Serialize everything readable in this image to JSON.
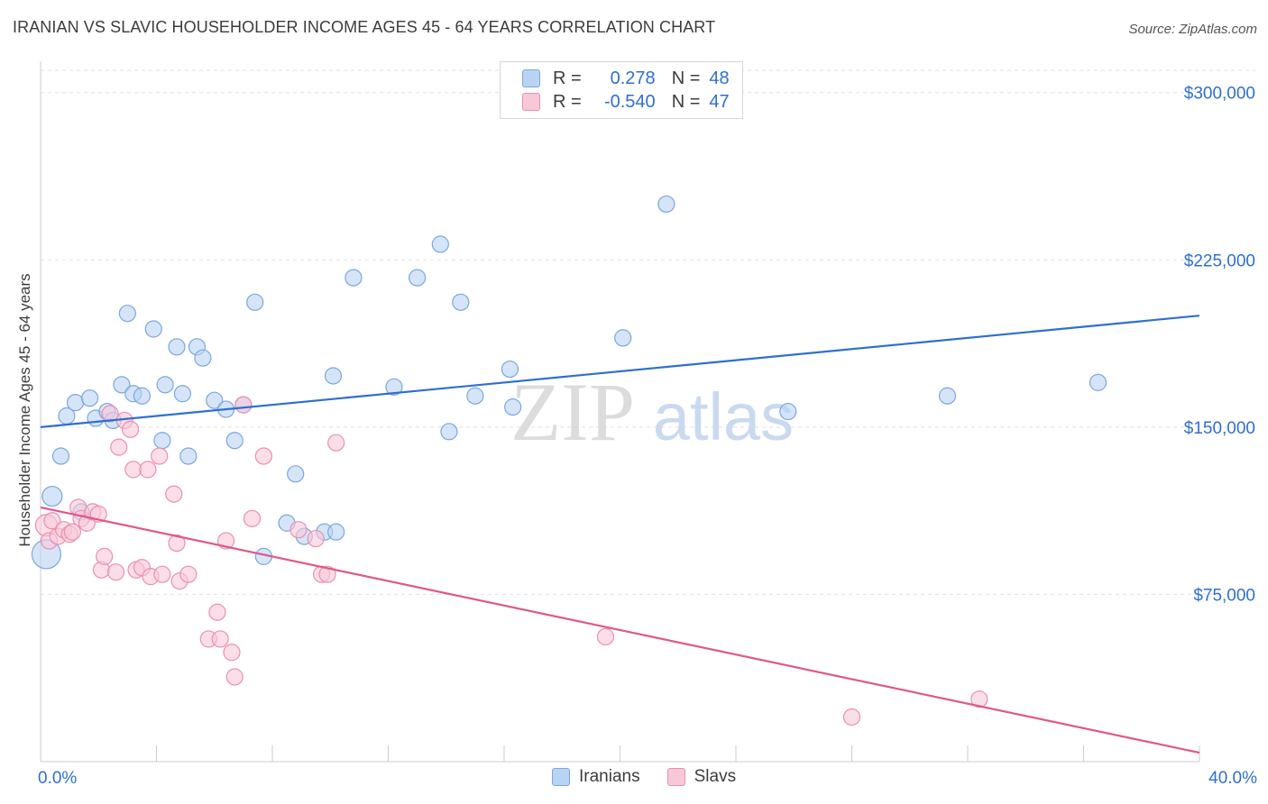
{
  "header": {
    "title": "IRANIAN VS SLAVIC HOUSEHOLDER INCOME AGES 45 - 64 YEARS CORRELATION CHART",
    "source": "Source: ZipAtlas.com"
  },
  "watermark": {
    "zip": "ZIP",
    "atlas": "atlas"
  },
  "legend": {
    "rows": [
      {
        "r_label": "R =",
        "r_value": "0.278",
        "n_label": "N =",
        "n_value": "48",
        "color": "#b9d3f2",
        "border": "#7aa6e0"
      },
      {
        "r_label": "R =",
        "r_value": "-0.540",
        "n_label": "N =",
        "n_value": "47",
        "color": "#f8c8d8",
        "border": "#eb8fb0"
      }
    ]
  },
  "bottom_legend": [
    {
      "label": "Iranians",
      "color": "#b9d3f2",
      "border": "#7aa6e0"
    },
    {
      "label": "Slavs",
      "color": "#f8c8d8",
      "border": "#eb8fb0"
    }
  ],
  "chart_data": {
    "type": "scatter",
    "title": "IRANIAN VS SLAVIC HOUSEHOLDER INCOME AGES 45 - 64 YEARS CORRELATION CHART",
    "xlabel": "",
    "ylabel": "Householder Income Ages 45 - 64 years",
    "xlim": [
      0,
      40
    ],
    "ylim": [
      0,
      310000
    ],
    "x_tick_labels": [
      "0.0%",
      "40.0%"
    ],
    "y_ticks": [
      75000,
      150000,
      225000,
      300000
    ],
    "y_tick_labels": [
      "$75,000",
      "$150,000",
      "$225,000",
      "$300,000"
    ],
    "grid": true,
    "colors": {
      "iranians": "#2f6fcf",
      "slavs": "#e0578a",
      "tick_label": "#2f6fcf"
    },
    "series": [
      {
        "name": "Iranians",
        "color": "#7aa6e0",
        "fill": "#b9d3f2",
        "trend": {
          "x": [
            0,
            40
          ],
          "y": [
            150000,
            200000
          ]
        },
        "points": [
          {
            "x": 0.2,
            "y": 93000
          },
          {
            "x": 0.4,
            "y": 119000
          },
          {
            "x": 0.7,
            "y": 137000
          },
          {
            "x": 0.9,
            "y": 155000
          },
          {
            "x": 1.2,
            "y": 161000
          },
          {
            "x": 1.4,
            "y": 112000
          },
          {
            "x": 1.7,
            "y": 163000
          },
          {
            "x": 1.9,
            "y": 154000
          },
          {
            "x": 2.3,
            "y": 157000
          },
          {
            "x": 2.5,
            "y": 153000
          },
          {
            "x": 2.8,
            "y": 169000
          },
          {
            "x": 3.0,
            "y": 201000
          },
          {
            "x": 3.2,
            "y": 165000
          },
          {
            "x": 3.5,
            "y": 164000
          },
          {
            "x": 3.9,
            "y": 194000
          },
          {
            "x": 4.2,
            "y": 144000
          },
          {
            "x": 4.3,
            "y": 169000
          },
          {
            "x": 4.7,
            "y": 186000
          },
          {
            "x": 4.9,
            "y": 165000
          },
          {
            "x": 5.1,
            "y": 137000
          },
          {
            "x": 5.4,
            "y": 186000
          },
          {
            "x": 5.6,
            "y": 181000
          },
          {
            "x": 6.0,
            "y": 162000
          },
          {
            "x": 6.4,
            "y": 158000
          },
          {
            "x": 6.7,
            "y": 144000
          },
          {
            "x": 7.0,
            "y": 160000
          },
          {
            "x": 7.4,
            "y": 206000
          },
          {
            "x": 7.7,
            "y": 92000
          },
          {
            "x": 8.5,
            "y": 107000
          },
          {
            "x": 8.8,
            "y": 129000
          },
          {
            "x": 9.1,
            "y": 101000
          },
          {
            "x": 9.8,
            "y": 103000
          },
          {
            "x": 10.1,
            "y": 173000
          },
          {
            "x": 10.2,
            "y": 103000
          },
          {
            "x": 10.8,
            "y": 217000
          },
          {
            "x": 12.2,
            "y": 168000
          },
          {
            "x": 13.0,
            "y": 217000
          },
          {
            "x": 13.8,
            "y": 232000
          },
          {
            "x": 14.1,
            "y": 148000
          },
          {
            "x": 14.5,
            "y": 206000
          },
          {
            "x": 15.0,
            "y": 164000
          },
          {
            "x": 16.2,
            "y": 176000
          },
          {
            "x": 16.3,
            "y": 159000
          },
          {
            "x": 20.1,
            "y": 190000
          },
          {
            "x": 21.6,
            "y": 250000
          },
          {
            "x": 25.8,
            "y": 157000
          },
          {
            "x": 31.3,
            "y": 164000
          },
          {
            "x": 36.5,
            "y": 170000
          }
        ]
      },
      {
        "name": "Slavs",
        "color": "#eb8fb0",
        "fill": "#f8c8d8",
        "trend": {
          "x": [
            0,
            40
          ],
          "y": [
            114000,
            4000
          ]
        },
        "points": [
          {
            "x": 0.2,
            "y": 106000
          },
          {
            "x": 0.3,
            "y": 99000
          },
          {
            "x": 0.4,
            "y": 108000
          },
          {
            "x": 0.6,
            "y": 101000
          },
          {
            "x": 0.8,
            "y": 104000
          },
          {
            "x": 1.0,
            "y": 102000
          },
          {
            "x": 1.1,
            "y": 103000
          },
          {
            "x": 1.3,
            "y": 114000
          },
          {
            "x": 1.4,
            "y": 109000
          },
          {
            "x": 1.6,
            "y": 107000
          },
          {
            "x": 1.8,
            "y": 112000
          },
          {
            "x": 2.0,
            "y": 111000
          },
          {
            "x": 2.1,
            "y": 86000
          },
          {
            "x": 2.2,
            "y": 92000
          },
          {
            "x": 2.4,
            "y": 156000
          },
          {
            "x": 2.6,
            "y": 85000
          },
          {
            "x": 2.7,
            "y": 141000
          },
          {
            "x": 2.9,
            "y": 153000
          },
          {
            "x": 3.1,
            "y": 149000
          },
          {
            "x": 3.2,
            "y": 131000
          },
          {
            "x": 3.3,
            "y": 86000
          },
          {
            "x": 3.5,
            "y": 87000
          },
          {
            "x": 3.7,
            "y": 131000
          },
          {
            "x": 3.8,
            "y": 83000
          },
          {
            "x": 4.1,
            "y": 137000
          },
          {
            "x": 4.2,
            "y": 84000
          },
          {
            "x": 4.6,
            "y": 120000
          },
          {
            "x": 4.7,
            "y": 98000
          },
          {
            "x": 4.8,
            "y": 81000
          },
          {
            "x": 5.1,
            "y": 84000
          },
          {
            "x": 5.8,
            "y": 55000
          },
          {
            "x": 6.1,
            "y": 67000
          },
          {
            "x": 6.2,
            "y": 55000
          },
          {
            "x": 6.4,
            "y": 99000
          },
          {
            "x": 6.6,
            "y": 49000
          },
          {
            "x": 6.7,
            "y": 38000
          },
          {
            "x": 7.0,
            "y": 160000
          },
          {
            "x": 7.3,
            "y": 109000
          },
          {
            "x": 7.7,
            "y": 137000
          },
          {
            "x": 8.9,
            "y": 104000
          },
          {
            "x": 9.5,
            "y": 100000
          },
          {
            "x": 9.7,
            "y": 84000
          },
          {
            "x": 9.9,
            "y": 84000
          },
          {
            "x": 10.2,
            "y": 143000
          },
          {
            "x": 19.5,
            "y": 56000
          },
          {
            "x": 28.0,
            "y": 20000
          },
          {
            "x": 32.4,
            "y": 28000
          }
        ]
      }
    ]
  }
}
